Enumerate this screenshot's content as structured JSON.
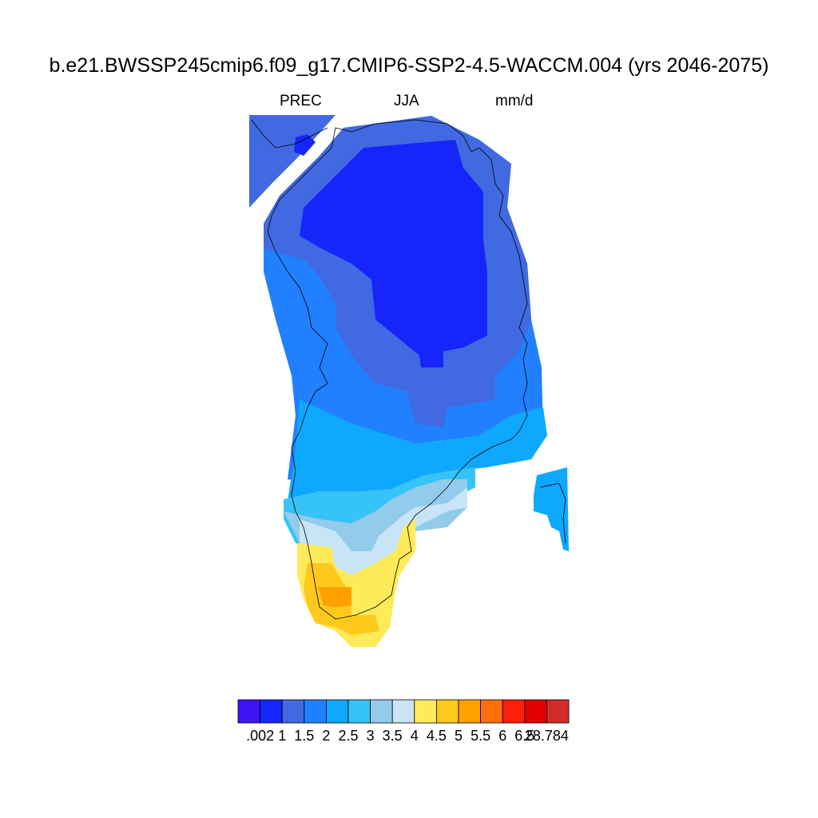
{
  "title": "b.e21.BWSSP245cmip6.f09_g17.CMIP6-SSP2-4.5-WACCM.004 (yrs 2046-2075)",
  "variable": "PREC",
  "season": "JJA",
  "units": "mm/d",
  "colorbar": {
    "colors": [
      "#3e13f4",
      "#1626fa",
      "#4169e1",
      "#2080ff",
      "#0fa8ff",
      "#36c3f7",
      "#93cbea",
      "#c8e4f6",
      "#ffeb5a",
      "#ffc91c",
      "#ff9f00",
      "#ff6e0a",
      "#ff1e0a",
      "#e00000",
      "#d22c2c"
    ],
    "labels": [
      ".002",
      "1",
      "1.5",
      "2",
      "2.5",
      "3",
      "3.5",
      "4",
      "4.5",
      "5",
      "5.5",
      "6",
      "6.5",
      "28.784"
    ]
  }
}
